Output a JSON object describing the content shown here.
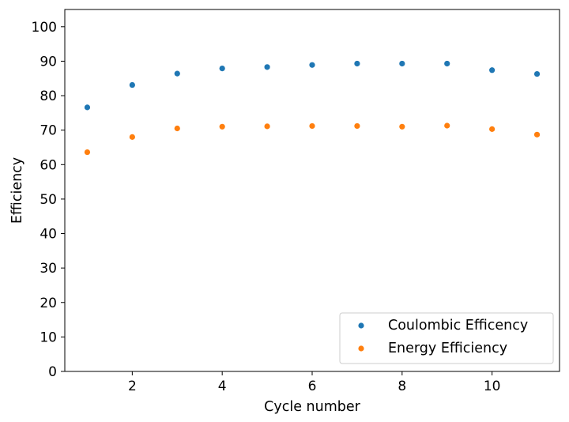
{
  "chart_data": {
    "type": "scatter",
    "title": "",
    "xlabel": "Cycle number",
    "ylabel": "Efficiency",
    "xlim": [
      0.5,
      11.5
    ],
    "ylim": [
      0,
      105
    ],
    "xticks": [
      2,
      4,
      6,
      8,
      10
    ],
    "xtick_labels": [
      "2",
      "4",
      "6",
      "8",
      "10"
    ],
    "yticks": [
      0,
      10,
      20,
      30,
      40,
      50,
      60,
      70,
      80,
      90,
      100
    ],
    "ytick_labels": [
      "0",
      "10",
      "20",
      "30",
      "40",
      "50",
      "60",
      "70",
      "80",
      "90",
      "100"
    ],
    "grid": false,
    "legend_position": "bottom-right",
    "x": [
      1,
      2,
      3,
      4,
      5,
      6,
      7,
      8,
      9,
      10,
      11
    ],
    "series": [
      {
        "name": "Coulombic Efficency",
        "color": "#1f77b4",
        "values": [
          76.6,
          83.1,
          86.4,
          87.9,
          88.3,
          88.9,
          89.3,
          89.3,
          89.3,
          87.4,
          86.3
        ]
      },
      {
        "name": "Energy Efficiency",
        "color": "#ff7f0e",
        "values": [
          63.6,
          68.0,
          70.5,
          71.0,
          71.1,
          71.2,
          71.2,
          71.0,
          71.3,
          70.3,
          68.7
        ]
      }
    ]
  }
}
